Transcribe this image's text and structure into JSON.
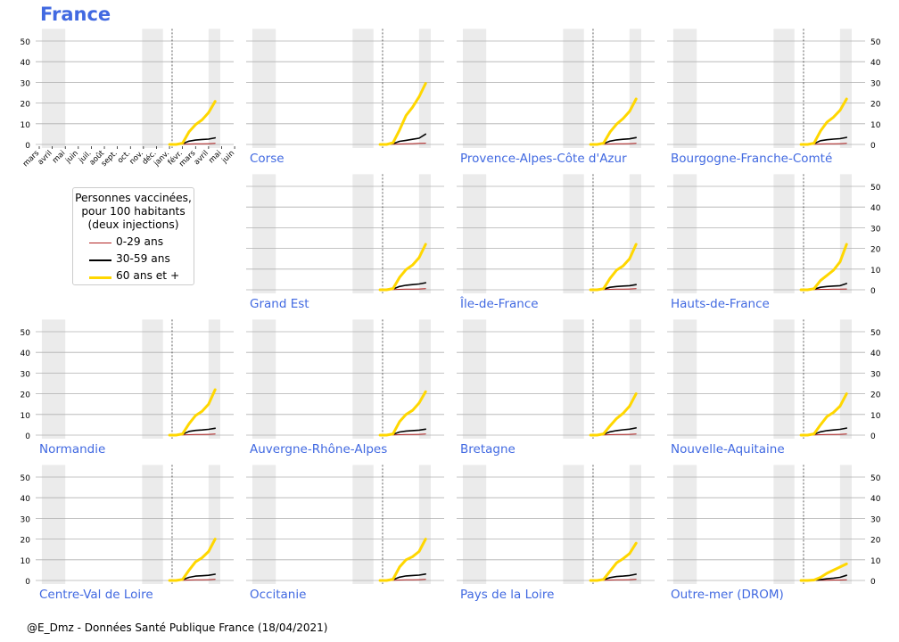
{
  "title": "France",
  "footer": "@E_Dmz - Données Santé Publique France (18/04/2021)",
  "legend": {
    "title_lines": [
      "Personnes vaccinées,",
      "pour 100 habitants",
      "(deux injections)"
    ],
    "items": [
      {
        "label": "0-29 ans",
        "color": "#b22222"
      },
      {
        "label": "30-59 ans",
        "color": "#000000"
      },
      {
        "label": "60 ans et +",
        "color": "#ffd700"
      }
    ]
  },
  "colors": {
    "title": "#4169e1",
    "region_label": "#4169e1",
    "shade": "#ebebeb",
    "grid": "#b0b0b0"
  },
  "chart_data": {
    "type": "line",
    "x_tick_labels": [
      "mars",
      "avril",
      "mai",
      "juin",
      "juil.",
      "août",
      "sept.",
      "oct.",
      "nov.",
      "déc.",
      "janv.",
      "févr.",
      "mars",
      "avril",
      "mai",
      "juin"
    ],
    "y_ticks": [
      0,
      10,
      20,
      30,
      40,
      50
    ],
    "ylim": [
      0,
      55
    ],
    "grid": true,
    "shaded_periods_month_index": [
      [
        0.2,
        2.0
      ],
      [
        7.9,
        9.5
      ],
      [
        13.0,
        13.9
      ]
    ],
    "vaccination_start_month_index": 10.2,
    "date_month_index": [
      10.0,
      10.5,
      11.0,
      11.5,
      12.0,
      12.5,
      13.0,
      13.5
    ],
    "panels": [
      {
        "region": "France",
        "series": [
          {
            "name": "0-29 ans",
            "values": [
              0,
              0,
              0.1,
              0.2,
              0.3,
              0.3,
              0.4,
              0.5
            ]
          },
          {
            "name": "30-59 ans",
            "values": [
              0,
              0,
              0.4,
              1.6,
              2.1,
              2.4,
              2.6,
              3.2
            ]
          },
          {
            "name": "60 ans et +",
            "values": [
              0,
              0,
              0.6,
              6.1,
              9.6,
              11.9,
              15.4,
              20.8
            ]
          }
        ]
      },
      {
        "region": "Corse",
        "series": [
          {
            "name": "0-29 ans",
            "values": [
              0,
              0,
              0.1,
              0.2,
              0.3,
              0.4,
              0.5,
              0.6
            ]
          },
          {
            "name": "30-59 ans",
            "values": [
              0,
              0,
              0.4,
              1.5,
              2.0,
              2.5,
              3.0,
              5.0
            ]
          },
          {
            "name": "60 ans et +",
            "values": [
              0,
              0,
              0.8,
              7.0,
              14.0,
              18.0,
              23.0,
              29.5
            ]
          }
        ]
      },
      {
        "region": "Provence-Alpes-Côte d'Azur",
        "series": [
          {
            "name": "0-29 ans",
            "values": [
              0,
              0,
              0.1,
              0.2,
              0.3,
              0.3,
              0.4,
              0.5
            ]
          },
          {
            "name": "30-59 ans",
            "values": [
              0,
              0,
              0.4,
              1.6,
              2.2,
              2.5,
              2.7,
              3.3
            ]
          },
          {
            "name": "60 ans et +",
            "values": [
              0,
              0,
              0.6,
              6.0,
              9.8,
              12.5,
              16.0,
              22.0
            ]
          }
        ]
      },
      {
        "region": "Bourgogne-Franche-Comté",
        "series": [
          {
            "name": "0-29 ans",
            "values": [
              0,
              0,
              0.1,
              0.2,
              0.3,
              0.3,
              0.4,
              0.5
            ]
          },
          {
            "name": "30-59 ans",
            "values": [
              0,
              0,
              0.4,
              1.8,
              2.3,
              2.6,
              2.8,
              3.4
            ]
          },
          {
            "name": "60 ans et +",
            "values": [
              0,
              0,
              0.6,
              6.5,
              10.8,
              13.2,
              16.5,
              22.0
            ]
          }
        ]
      },
      {
        "region": "Grand Est",
        "series": [
          {
            "name": "0-29 ans",
            "values": [
              0,
              0,
              0.1,
              0.2,
              0.3,
              0.3,
              0.4,
              0.5
            ]
          },
          {
            "name": "30-59 ans",
            "values": [
              0,
              0,
              0.4,
              1.6,
              2.2,
              2.5,
              2.8,
              3.4
            ]
          },
          {
            "name": "60 ans et +",
            "values": [
              0,
              0,
              0.6,
              6.0,
              9.8,
              12.0,
              15.5,
              22.0
            ]
          }
        ]
      },
      {
        "region": "Île-de-France",
        "series": [
          {
            "name": "0-29 ans",
            "values": [
              0,
              0,
              0.1,
              0.2,
              0.3,
              0.3,
              0.4,
              0.5
            ]
          },
          {
            "name": "30-59 ans",
            "values": [
              0,
              0,
              0.3,
              1.2,
              1.6,
              1.8,
              2.0,
              2.5
            ]
          },
          {
            "name": "60 ans et +",
            "values": [
              0,
              0,
              0.5,
              5.5,
              9.5,
              11.5,
              15.0,
              22.0
            ]
          }
        ]
      },
      {
        "region": "Hauts-de-France",
        "series": [
          {
            "name": "0-29 ans",
            "values": [
              0,
              0,
              0.1,
              0.2,
              0.2,
              0.3,
              0.3,
              0.4
            ]
          },
          {
            "name": "30-59 ans",
            "values": [
              0,
              0,
              0.3,
              1.2,
              1.6,
              1.8,
              2.0,
              3.0
            ]
          },
          {
            "name": "60 ans et +",
            "values": [
              0,
              0,
              0.5,
              4.5,
              7.0,
              9.5,
              13.5,
              22.0
            ]
          }
        ]
      },
      {
        "region": "Normandie",
        "series": [
          {
            "name": "0-29 ans",
            "values": [
              0,
              0,
              0.1,
              0.2,
              0.3,
              0.3,
              0.4,
              0.5
            ]
          },
          {
            "name": "30-59 ans",
            "values": [
              0,
              0,
              0.4,
              1.8,
              2.3,
              2.5,
              2.8,
              3.3
            ]
          },
          {
            "name": "60 ans et +",
            "values": [
              0,
              0,
              0.6,
              5.5,
              9.5,
              11.5,
              15.0,
              22.0
            ]
          }
        ]
      },
      {
        "region": "Auvergne-Rhône-Alpes",
        "series": [
          {
            "name": "0-29 ans",
            "values": [
              0,
              0,
              0.1,
              0.2,
              0.3,
              0.3,
              0.4,
              0.5
            ]
          },
          {
            "name": "30-59 ans",
            "values": [
              0,
              0,
              0.4,
              1.5,
              2.0,
              2.2,
              2.4,
              2.9
            ]
          },
          {
            "name": "60 ans et +",
            "values": [
              0,
              0,
              0.6,
              6.5,
              10.0,
              12.0,
              15.5,
              21.0
            ]
          }
        ]
      },
      {
        "region": "Bretagne",
        "series": [
          {
            "name": "0-29 ans",
            "values": [
              0,
              0,
              0.1,
              0.2,
              0.3,
              0.3,
              0.4,
              0.5
            ]
          },
          {
            "name": "30-59 ans",
            "values": [
              0,
              0,
              0.4,
              1.6,
              2.2,
              2.6,
              2.9,
              3.5
            ]
          },
          {
            "name": "60 ans et +",
            "values": [
              0,
              0,
              0.6,
              4.5,
              8.0,
              10.5,
              14.0,
              20.0
            ]
          }
        ]
      },
      {
        "region": "Nouvelle-Aquitaine",
        "series": [
          {
            "name": "0-29 ans",
            "values": [
              0,
              0,
              0.1,
              0.2,
              0.3,
              0.3,
              0.4,
              0.5
            ]
          },
          {
            "name": "30-59 ans",
            "values": [
              0,
              0,
              0.4,
              1.6,
              2.2,
              2.5,
              2.8,
              3.4
            ]
          },
          {
            "name": "60 ans et +",
            "values": [
              0,
              0,
              0.6,
              5.0,
              9.0,
              11.0,
              14.0,
              20.0
            ]
          }
        ]
      },
      {
        "region": "Centre-Val de Loire",
        "series": [
          {
            "name": "0-29 ans",
            "values": [
              0,
              0,
              0.1,
              0.2,
              0.3,
              0.3,
              0.4,
              0.5
            ]
          },
          {
            "name": "30-59 ans",
            "values": [
              0,
              0,
              0.4,
              1.5,
              2.1,
              2.3,
              2.5,
              3.0
            ]
          },
          {
            "name": "60 ans et +",
            "values": [
              0,
              0,
              0.5,
              5.0,
              9.0,
              11.0,
              14.0,
              20.0
            ]
          }
        ]
      },
      {
        "region": "Occitanie",
        "series": [
          {
            "name": "0-29 ans",
            "values": [
              0,
              0,
              0.1,
              0.2,
              0.3,
              0.3,
              0.4,
              0.5
            ]
          },
          {
            "name": "30-59 ans",
            "values": [
              0,
              0,
              0.4,
              1.6,
              2.2,
              2.4,
              2.6,
              3.1
            ]
          },
          {
            "name": "60 ans et +",
            "values": [
              0,
              0,
              0.6,
              6.5,
              10.0,
              11.5,
              14.0,
              20.0
            ]
          }
        ]
      },
      {
        "region": "Pays de la Loire",
        "series": [
          {
            "name": "0-29 ans",
            "values": [
              0,
              0,
              0.1,
              0.2,
              0.3,
              0.3,
              0.4,
              0.5
            ]
          },
          {
            "name": "30-59 ans",
            "values": [
              0,
              0,
              0.4,
              1.4,
              1.9,
              2.1,
              2.4,
              3.0
            ]
          },
          {
            "name": "60 ans et +",
            "values": [
              0,
              0,
              0.5,
              4.5,
              8.5,
              10.5,
              13.0,
              18.0
            ]
          }
        ]
      },
      {
        "region": "Outre-mer (DROM)",
        "series": [
          {
            "name": "0-29 ans",
            "values": [
              0,
              0,
              0,
              0.1,
              0.1,
              0.2,
              0.2,
              0.3
            ]
          },
          {
            "name": "30-59 ans",
            "values": [
              0,
              0,
              0.1,
              0.4,
              0.8,
              1.1,
              1.5,
              2.5
            ]
          },
          {
            "name": "60 ans et +",
            "values": [
              0,
              0,
              0.2,
              1.5,
              3.5,
              5.0,
              6.5,
              8.0
            ]
          }
        ]
      }
    ]
  }
}
